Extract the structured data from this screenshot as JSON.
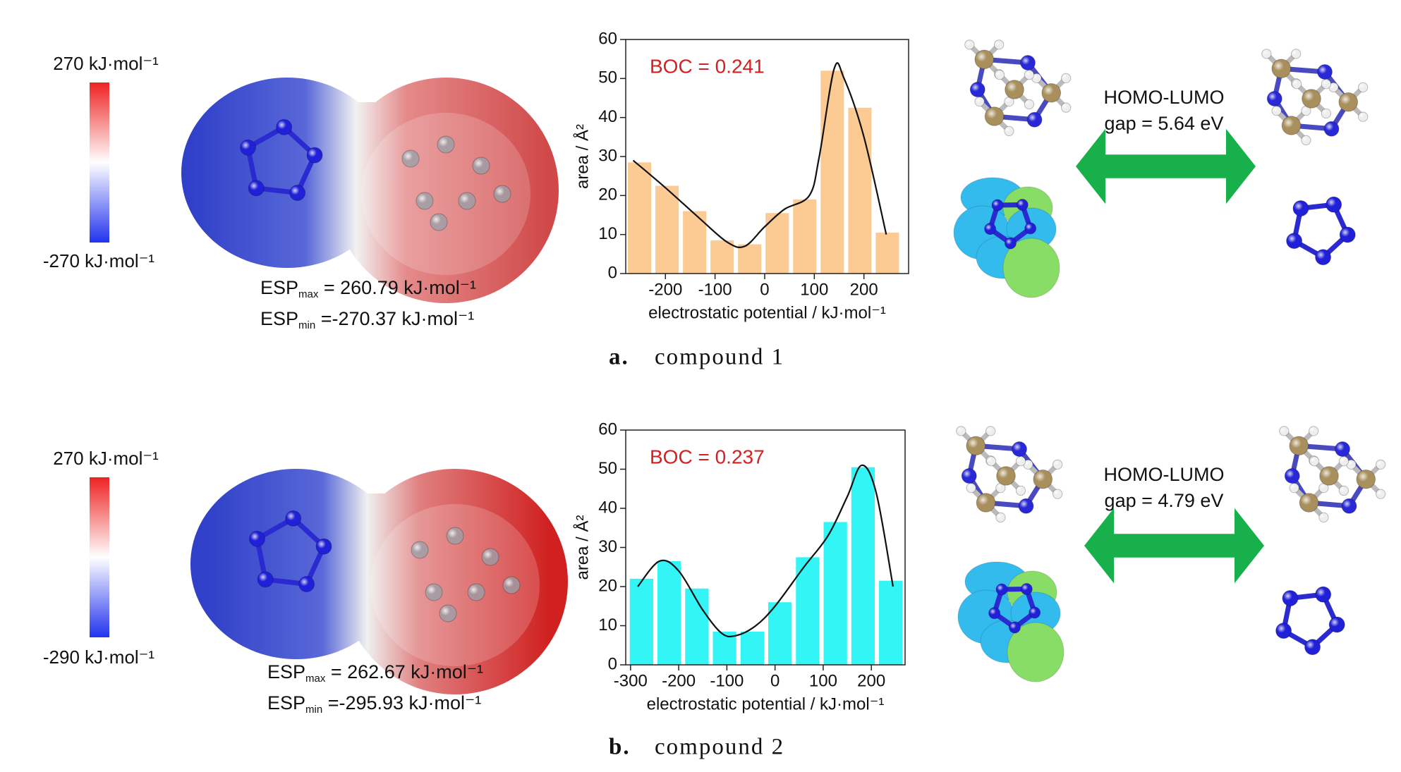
{
  "panels": [
    {
      "scale_max": "270 kJ·mol⁻¹",
      "scale_min": "-270 kJ·mol⁻¹",
      "esp_max": {
        "symbol": "ESP",
        "sub": "max",
        "text": " = 260.79 kJ·mol⁻¹"
      },
      "esp_min": {
        "symbol": "ESP",
        "sub": "min",
        "text": " =-270.37 kJ·mol⁻¹"
      },
      "gap_title": "HOMO-LUMO",
      "gap_value": "gap = 5.64 eV",
      "caption_letter": "a.",
      "caption": "compound 1"
    },
    {
      "scale_max": "270 kJ·mol⁻¹",
      "scale_min": "-290 kJ·mol⁻¹",
      "esp_max": {
        "symbol": "ESP",
        "sub": "max",
        "text": " = 262.67 kJ·mol⁻¹"
      },
      "esp_min": {
        "symbol": "ESP",
        "sub": "min",
        "text": " =-295.93 kJ·mol⁻¹"
      },
      "gap_title": "HOMO-LUMO",
      "gap_value": "gap = 4.79 eV",
      "caption_letter": "b.",
      "caption": "compound 2"
    }
  ],
  "chart_data": [
    {
      "type": "histogram",
      "annotation": "BOC = 0.241",
      "x_label": "electrostatic potential / kJ·mol⁻¹",
      "y_label": "area / Å²",
      "bins": [
        -280,
        -224.5,
        -169,
        -113.5,
        -58,
        -2.5,
        53,
        108.5,
        164,
        219.5,
        275
      ],
      "values": [
        28.5,
        22.5,
        16,
        8.5,
        7.5,
        15.5,
        19,
        52,
        42.5,
        10.5
      ],
      "color": "#fccb93",
      "curve": {
        "color": "#111111",
        "x": [
          -265,
          -200,
          -130,
          -75,
          -40,
          0,
          40,
          90,
          110,
          140,
          160,
          200,
          245
        ],
        "y": [
          29,
          22,
          14,
          8,
          7,
          12,
          16.5,
          20,
          30,
          52.5,
          50,
          35,
          10
        ]
      },
      "xlim": [
        -280,
        290
      ],
      "xticks": [
        -200,
        -100,
        0,
        100,
        200
      ],
      "ylim": [
        0,
        60
      ],
      "yticks": [
        0,
        10,
        20,
        30,
        40,
        50,
        60
      ]
    },
    {
      "type": "histogram",
      "annotation": "BOC = 0.237",
      "x_label": "electrostatic potential / kJ·mol⁻¹",
      "y_label": "area / Å²",
      "bins": [
        -306,
        -248.5,
        -191,
        -133.5,
        -76,
        -18.5,
        39,
        96.5,
        154,
        211.5,
        269
      ],
      "values": [
        22,
        26.5,
        19.5,
        8.5,
        8.5,
        16,
        27.5,
        36.5,
        50.5,
        21.5
      ],
      "color": "#33f5f5",
      "curve": {
        "color": "#111111",
        "x": [
          -285,
          -240,
          -200,
          -150,
          -110,
          -80,
          -40,
          0,
          60,
          110,
          150,
          180,
          210,
          245
        ],
        "y": [
          20,
          26.5,
          24,
          14,
          8,
          7.5,
          10,
          15,
          25,
          33,
          43,
          51,
          44,
          20
        ]
      },
      "xlim": [
        -310,
        270
      ],
      "xticks": [
        -300,
        -200,
        -100,
        0,
        100,
        200
      ],
      "ylim": [
        0,
        60
      ],
      "yticks": [
        0,
        10,
        20,
        30,
        40,
        50,
        60
      ]
    }
  ]
}
